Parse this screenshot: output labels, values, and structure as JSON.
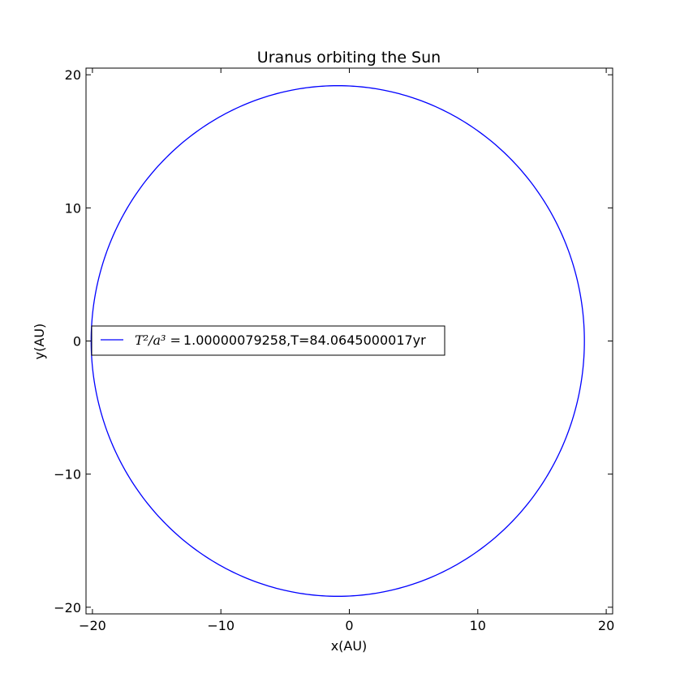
{
  "chart_data": {
    "type": "line",
    "title": "Uranus orbiting the Sun",
    "xlabel": "x(AU)",
    "ylabel": "y(AU)",
    "xlim": [
      -20.5,
      20.5
    ],
    "ylim": [
      -20.5,
      20.5
    ],
    "xticks": [
      -20,
      -10,
      0,
      10,
      20
    ],
    "yticks": [
      -20,
      -10,
      0,
      10,
      20
    ],
    "xtick_labels": [
      "−20",
      "−10",
      "0",
      "10",
      "20"
    ],
    "ytick_labels": [
      "−20",
      "−10",
      "0",
      "10",
      "20"
    ],
    "grid": false,
    "legend_position": "center-left",
    "series": [
      {
        "name": "T²/a³ = 1.00000079258,T=84.0645000017yr",
        "color": "#0000ff",
        "orbit": {
          "perihelion_x": 18.3,
          "aphelion_x": -20.1,
          "semi_major_axis": 19.2,
          "semi_minor_axis": 19.18,
          "center_x": -0.9,
          "center_y": 0
        }
      }
    ],
    "legend": {
      "math_part": "T²/a³ =",
      "value_part": "1.00000079258,T=84.0645000017yr"
    }
  }
}
